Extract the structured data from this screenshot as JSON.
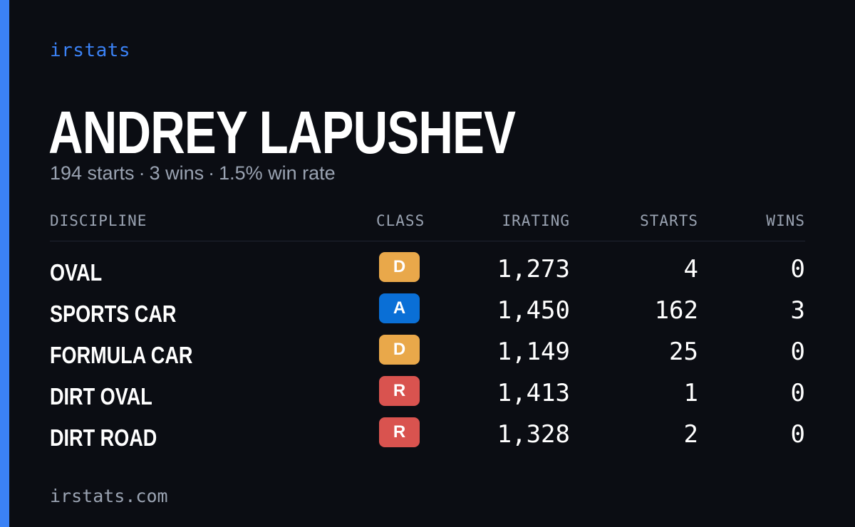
{
  "brand": "irstats",
  "driver": {
    "name": "ANDREY LAPUSHEV",
    "starts": "194 starts",
    "wins": "3 wins",
    "win_rate": "1.5% win rate",
    "separator": "·"
  },
  "table": {
    "headers": {
      "discipline": "DISCIPLINE",
      "class": "CLASS",
      "irating": "IRATING",
      "starts": "STARTS",
      "wins": "WINS"
    },
    "rows": [
      {
        "discipline": "OVAL",
        "class": "D",
        "irating": "1,273",
        "starts": "4",
        "wins": "0"
      },
      {
        "discipline": "SPORTS CAR",
        "class": "A",
        "irating": "1,450",
        "starts": "162",
        "wins": "3"
      },
      {
        "discipline": "FORMULA CAR",
        "class": "D",
        "irating": "1,149",
        "starts": "25",
        "wins": "0"
      },
      {
        "discipline": "DIRT OVAL",
        "class": "R",
        "irating": "1,413",
        "starts": "1",
        "wins": "0"
      },
      {
        "discipline": "DIRT ROAD",
        "class": "R",
        "irating": "1,328",
        "starts": "2",
        "wins": "0"
      }
    ]
  },
  "class_colors": {
    "A": "#0a6fd6",
    "D": "#e9a84a",
    "R": "#d9534f"
  },
  "colors": {
    "accent": "#3b82f6",
    "background": "#0b0d13",
    "muted_text": "#9aa3b2"
  },
  "footer": "irstats.com"
}
